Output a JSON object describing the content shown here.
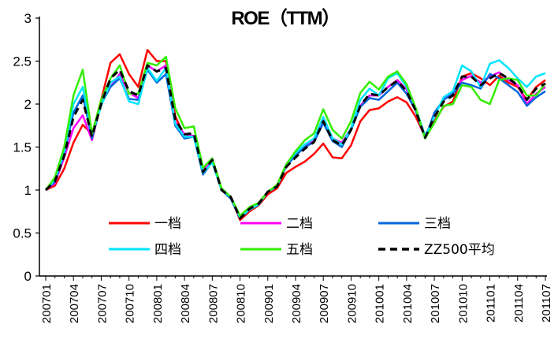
{
  "chart_data": {
    "type": "line",
    "title": "ROE（TTM）",
    "xlabel": "",
    "ylabel": "",
    "ylim": [
      0,
      3
    ],
    "yticks": [
      0,
      0.5,
      1,
      1.5,
      2,
      2.5,
      3
    ],
    "ytick_labels": [
      "0",
      "0.5",
      "1",
      "1.5",
      "2",
      "2.5",
      "3"
    ],
    "x": [
      "200701",
      "200702",
      "200703",
      "200704",
      "200705",
      "200706",
      "200707",
      "200708",
      "200709",
      "200710",
      "200711",
      "200712",
      "200801",
      "200802",
      "200803",
      "200804",
      "200805",
      "200806",
      "200807",
      "200808",
      "200809",
      "200810",
      "200811",
      "200812",
      "200901",
      "200902",
      "200903",
      "200904",
      "200905",
      "200906",
      "200907",
      "200908",
      "200909",
      "200910",
      "200911",
      "200912",
      "201001",
      "201002",
      "201003",
      "201004",
      "201005",
      "201006",
      "201007",
      "201008",
      "201009",
      "201010",
      "201011",
      "201012",
      "201101",
      "201102",
      "201103",
      "201104",
      "201105",
      "201106",
      "201107"
    ],
    "x_tick_labels": [
      "200701",
      "200704",
      "200707",
      "200710",
      "200801",
      "200804",
      "200807",
      "200810",
      "200901",
      "200904",
      "200907",
      "200910",
      "201001",
      "201004",
      "201007",
      "201010",
      "201101",
      "201104",
      "201107"
    ],
    "legend_position": "inside-bottom",
    "grid": false,
    "series": [
      {
        "name": "一档",
        "color": "#ff0000",
        "dash": "solid",
        "values": [
          1.0,
          1.05,
          1.25,
          1.55,
          1.76,
          1.65,
          2.05,
          2.48,
          2.58,
          2.35,
          2.2,
          2.63,
          2.5,
          2.5,
          1.86,
          1.62,
          1.62,
          1.2,
          1.35,
          1.0,
          0.92,
          0.65,
          0.75,
          0.82,
          0.95,
          1.02,
          1.2,
          1.27,
          1.33,
          1.42,
          1.54,
          1.38,
          1.37,
          1.52,
          1.8,
          1.93,
          1.95,
          2.03,
          2.08,
          2.02,
          1.85,
          1.62,
          1.8,
          1.97,
          2.03,
          2.32,
          2.36,
          2.3,
          2.22,
          2.33,
          2.25,
          2.2,
          2.05,
          2.2,
          2.28
        ]
      },
      {
        "name": "二档",
        "color": "#ff00ff",
        "dash": "solid",
        "values": [
          1.0,
          1.08,
          1.38,
          1.72,
          1.87,
          1.58,
          2.02,
          2.2,
          2.35,
          2.13,
          2.07,
          2.45,
          2.38,
          2.45,
          1.79,
          1.65,
          1.63,
          1.22,
          1.37,
          1.01,
          0.91,
          0.68,
          0.8,
          0.84,
          0.98,
          1.05,
          1.3,
          1.44,
          1.52,
          1.58,
          1.82,
          1.6,
          1.55,
          1.72,
          1.98,
          2.1,
          2.1,
          2.2,
          2.28,
          2.17,
          1.92,
          1.62,
          1.88,
          2.05,
          2.15,
          2.28,
          2.33,
          2.25,
          2.32,
          2.37,
          2.28,
          2.22,
          2.0,
          2.12,
          2.2
        ]
      },
      {
        "name": "三档",
        "color": "#0066dd",
        "dash": "solid",
        "values": [
          1.0,
          1.1,
          1.42,
          1.9,
          2.1,
          1.6,
          2.0,
          2.2,
          2.3,
          2.06,
          2.05,
          2.4,
          2.25,
          2.35,
          1.75,
          1.6,
          1.62,
          1.18,
          1.33,
          1.0,
          0.9,
          0.67,
          0.77,
          0.83,
          0.98,
          1.04,
          1.28,
          1.4,
          1.5,
          1.56,
          1.78,
          1.57,
          1.5,
          1.7,
          1.97,
          2.07,
          2.05,
          2.15,
          2.25,
          2.12,
          1.92,
          1.6,
          1.9,
          2.05,
          2.12,
          2.25,
          2.22,
          2.18,
          2.35,
          2.3,
          2.22,
          2.14,
          1.98,
          2.08,
          2.15
        ]
      },
      {
        "name": "四档",
        "color": "#00e5ff",
        "dash": "solid",
        "values": [
          1.0,
          1.12,
          1.45,
          2.0,
          2.2,
          1.65,
          1.98,
          2.25,
          2.32,
          2.03,
          2.0,
          2.42,
          2.27,
          2.42,
          1.77,
          1.62,
          1.62,
          1.2,
          1.32,
          1.0,
          0.92,
          0.68,
          0.77,
          0.83,
          0.98,
          1.05,
          1.3,
          1.43,
          1.53,
          1.6,
          1.85,
          1.6,
          1.53,
          1.72,
          2.05,
          2.18,
          2.1,
          2.3,
          2.36,
          2.2,
          1.95,
          1.63,
          1.85,
          2.08,
          2.15,
          2.45,
          2.38,
          2.2,
          2.47,
          2.51,
          2.42,
          2.3,
          2.2,
          2.32,
          2.36
        ]
      },
      {
        "name": "五档",
        "color": "#33ee00",
        "dash": "solid",
        "values": [
          1.0,
          1.15,
          1.5,
          2.1,
          2.4,
          1.65,
          2.05,
          2.3,
          2.45,
          2.12,
          2.12,
          2.48,
          2.45,
          2.55,
          1.95,
          1.72,
          1.74,
          1.26,
          1.37,
          1.02,
          0.92,
          0.7,
          0.8,
          0.85,
          0.98,
          1.06,
          1.3,
          1.45,
          1.58,
          1.66,
          1.94,
          1.7,
          1.6,
          1.8,
          2.13,
          2.26,
          2.17,
          2.32,
          2.38,
          2.23,
          1.95,
          1.6,
          1.78,
          1.98,
          2.0,
          2.22,
          2.2,
          2.05,
          2.0,
          2.28,
          2.3,
          2.28,
          2.1,
          2.1,
          2.24
        ]
      },
      {
        "name": "ZZ500平均",
        "color": "#000000",
        "dash": "dashed",
        "values": [
          1.0,
          1.1,
          1.4,
          1.85,
          2.05,
          1.62,
          2.0,
          2.3,
          2.4,
          2.15,
          2.1,
          2.45,
          2.38,
          2.42,
          1.82,
          1.65,
          1.66,
          1.21,
          1.35,
          1.0,
          0.92,
          0.67,
          0.78,
          0.84,
          0.98,
          1.04,
          1.27,
          1.38,
          1.48,
          1.56,
          1.8,
          1.58,
          1.52,
          1.7,
          1.98,
          2.12,
          2.1,
          2.2,
          2.27,
          2.15,
          1.92,
          1.61,
          1.85,
          2.03,
          2.1,
          2.32,
          2.32,
          2.22,
          2.3,
          2.36,
          2.3,
          2.22,
          2.05,
          2.18,
          2.24
        ]
      }
    ]
  }
}
